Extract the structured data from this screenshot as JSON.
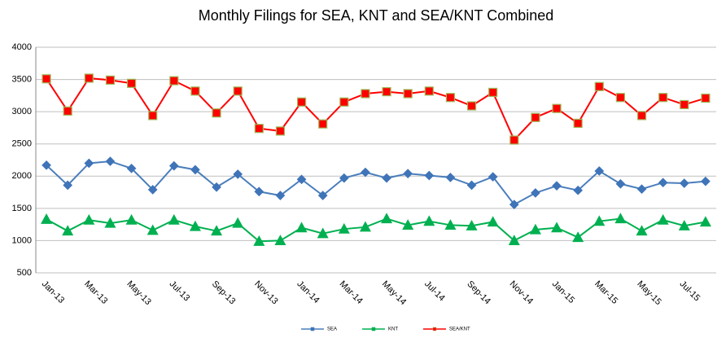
{
  "chart_data": {
    "type": "line",
    "title": "Monthly Filings for SEA, KNT and SEA/KNT Combined",
    "categories": [
      "Jan-13",
      null,
      "Mar-13",
      null,
      "May-13",
      null,
      "Jul-13",
      null,
      "Sep-13",
      null,
      "Nov-13",
      null,
      "Jan-14",
      null,
      "Mar-14",
      null,
      "May-14",
      null,
      "Jul-14",
      null,
      "Sep-14",
      null,
      "Nov-14",
      null,
      "Jan-15",
      null,
      "Mar-15",
      null,
      "May-15",
      null,
      "Jul-15",
      null
    ],
    "series": [
      {
        "name": "SEA",
        "color": "#4a7ebb",
        "marker": "diamond",
        "marker_fill": "#3f74b8",
        "marker_stroke": "#3f74b8",
        "values": [
          2170,
          1860,
          2200,
          2230,
          2120,
          1790,
          2160,
          2100,
          1830,
          2030,
          1760,
          1700,
          1950,
          1700,
          1970,
          2060,
          1970,
          2040,
          2010,
          1980,
          1860,
          1990,
          1560,
          1740,
          1850,
          1780,
          2080,
          1880,
          1800,
          1900,
          1890,
          1920
        ]
      },
      {
        "name": "KNT",
        "color": "#00b050",
        "marker": "triangle",
        "marker_fill": "#00b050",
        "marker_stroke": "#00b050",
        "values": [
          1330,
          1150,
          1320,
          1270,
          1320,
          1160,
          1320,
          1220,
          1150,
          1270,
          990,
          1000,
          1200,
          1110,
          1180,
          1210,
          1340,
          1240,
          1300,
          1240,
          1230,
          1290,
          1000,
          1170,
          1200,
          1050,
          1300,
          1340,
          1150,
          1320,
          1230,
          1290
        ]
      },
      {
        "name": "SEA/KNT",
        "color": "#ff0000",
        "marker": "square",
        "marker_fill": "#ff0000",
        "marker_stroke": "#9bbb59",
        "values": [
          3510,
          3010,
          3520,
          3490,
          3440,
          2940,
          3480,
          3320,
          2980,
          3320,
          2740,
          2700,
          3150,
          2810,
          3150,
          3280,
          3310,
          3280,
          3320,
          3220,
          3090,
          3300,
          2560,
          2910,
          3050,
          2820,
          3390,
          3220,
          2940,
          3220,
          3110,
          3210
        ]
      }
    ],
    "ylim": [
      500,
      4000
    ],
    "yticks": [
      500,
      1000,
      1500,
      2000,
      2500,
      3000,
      3500,
      4000
    ],
    "grid": true
  }
}
